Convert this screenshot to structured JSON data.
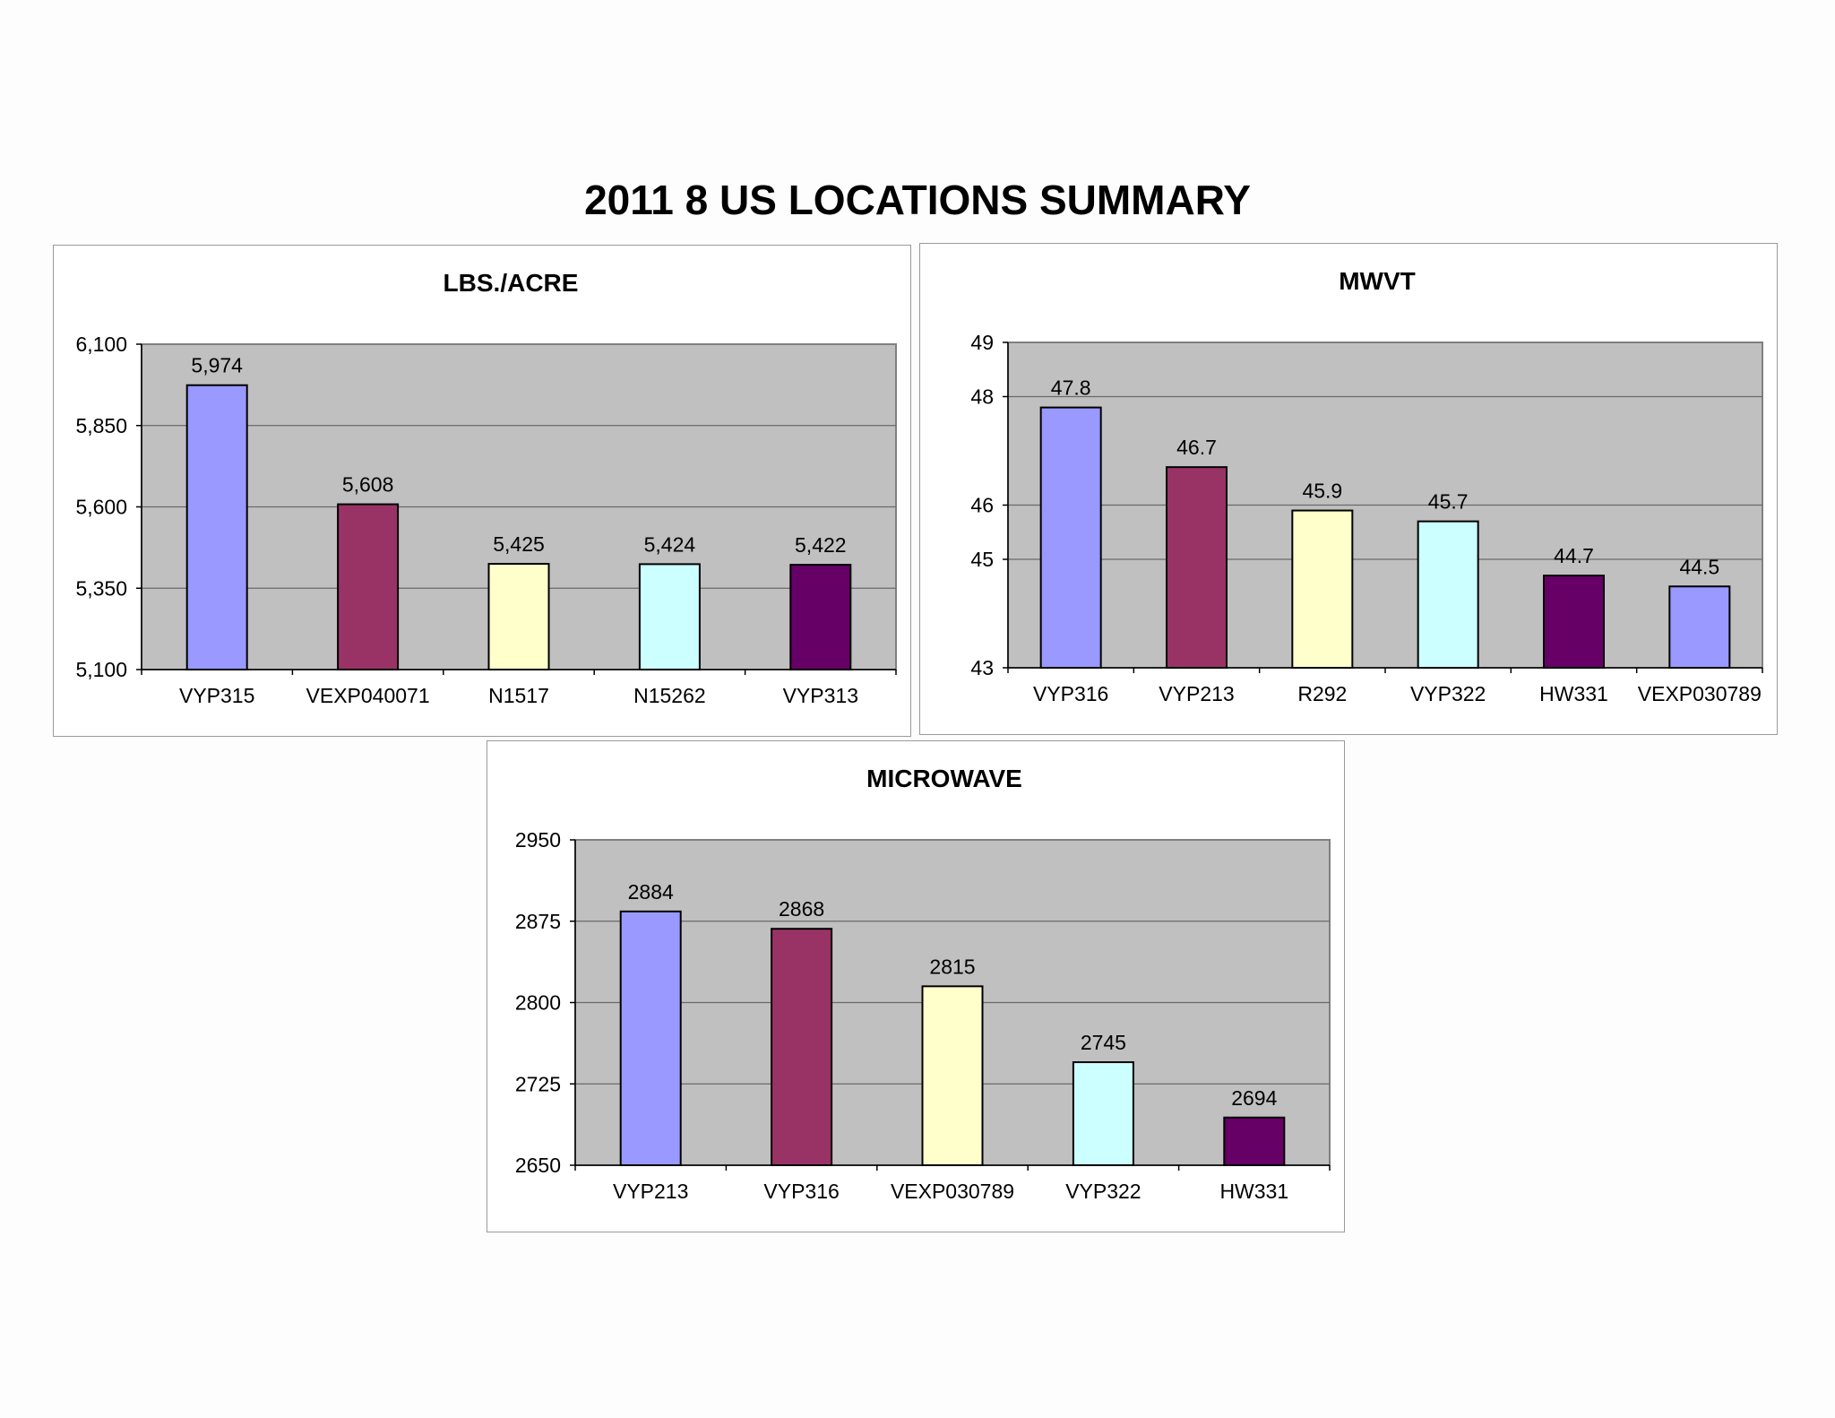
{
  "page": {
    "title": "2011 8 US LOCATIONS SUMMARY"
  },
  "chart_data": [
    {
      "type": "bar",
      "title": "LBS./ACRE",
      "categories": [
        "VYP315",
        "VEXP040071",
        "N1517",
        "N15262",
        "VYP313"
      ],
      "values": [
        5974,
        5608,
        5425,
        5424,
        5422
      ],
      "value_labels": [
        "5,974",
        "5,608",
        "5,425",
        "5,424",
        "5,422"
      ],
      "bar_colors": [
        "#9999ff",
        "#993366",
        "#ffffcc",
        "#ccffff",
        "#660066"
      ],
      "ylim": [
        5100,
        6100
      ],
      "yticks": [
        5100,
        5350,
        5600,
        5850,
        6100
      ],
      "ytick_labels": [
        "5,100",
        "5,350",
        "5,600",
        "5,850",
        "6,100"
      ],
      "plot_background": "#c0c0c0",
      "grid": true,
      "legend": false
    },
    {
      "type": "bar",
      "title": "MWVT",
      "categories": [
        "VYP316",
        "VYP213",
        "R292",
        "VYP322",
        "HW331",
        "VEXP030789"
      ],
      "values": [
        47.8,
        46.7,
        45.9,
        45.7,
        44.7,
        44.5
      ],
      "value_labels": [
        "47.8",
        "46.7",
        "45.9",
        "45.7",
        "44.7",
        "44.5"
      ],
      "bar_colors": [
        "#9999ff",
        "#993366",
        "#ffffcc",
        "#ccffff",
        "#660066",
        "#9999ff"
      ],
      "ylim": [
        43,
        49
      ],
      "yticks": [
        43,
        45,
        46,
        48,
        49
      ],
      "ytick_labels": [
        "43",
        "45",
        "46",
        "48",
        "49"
      ],
      "plot_background": "#c0c0c0",
      "grid": true,
      "legend": false
    },
    {
      "type": "bar",
      "title": "MICROWAVE",
      "categories": [
        "VYP213",
        "VYP316",
        "VEXP030789",
        "VYP322",
        "HW331"
      ],
      "values": [
        2884,
        2868,
        2815,
        2745,
        2694
      ],
      "value_labels": [
        "2884",
        "2868",
        "2815",
        "2745",
        "2694"
      ],
      "bar_colors": [
        "#9999ff",
        "#993366",
        "#ffffcc",
        "#ccffff",
        "#660066"
      ],
      "ylim": [
        2650,
        2950
      ],
      "yticks": [
        2650,
        2725,
        2800,
        2875,
        2950
      ],
      "ytick_labels": [
        "2650",
        "2725",
        "2800",
        "2875",
        "2950"
      ],
      "plot_background": "#c0c0c0",
      "grid": true,
      "legend": false
    }
  ]
}
